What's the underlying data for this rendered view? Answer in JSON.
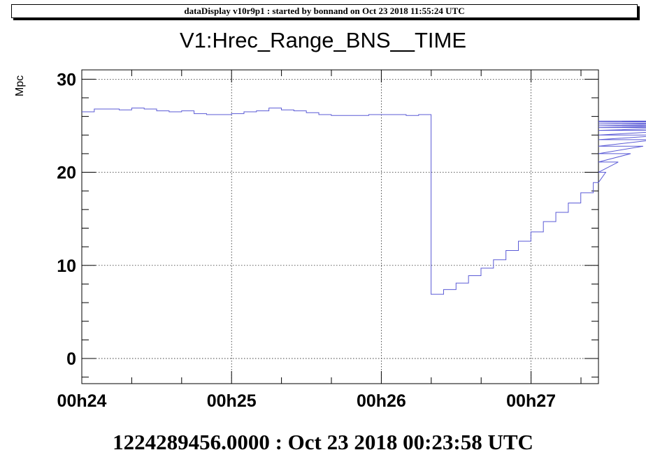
{
  "banner": "dataDisplay v10r9p1 : started by bonnand on Oct 23 2018 11:55:24 UTC",
  "footer": "1224289456.0000 : Oct 23 2018 00:23:58 UTC",
  "colors": {
    "series": "#5b5bd6",
    "grid": "#000000",
    "axis": "#000000"
  },
  "chart_data": {
    "type": "line",
    "title": "V1:Hrec_Range_BNS__TIME",
    "xlabel": "",
    "ylabel": "Mpc",
    "xlim_minutes": [
      24.0,
      27.45
    ],
    "ylim": [
      -2.7,
      31
    ],
    "x_ticks": [
      {
        "value": 24,
        "label": "00h24"
      },
      {
        "value": 25,
        "label": "00h25"
      },
      {
        "value": 26,
        "label": "00h26"
      },
      {
        "value": 27,
        "label": "00h27"
      }
    ],
    "y_ticks": [
      0,
      10,
      20,
      30
    ],
    "grid": true,
    "bin_width_minutes": 0.0833,
    "series": [
      {
        "style": "step",
        "x_start_minutes": 24.0,
        "values": [
          26.5,
          26.8,
          26.8,
          26.7,
          26.9,
          26.8,
          26.6,
          26.5,
          26.6,
          26.3,
          26.2,
          26.2,
          26.3,
          26.5,
          26.6,
          26.9,
          26.7,
          26.6,
          26.4,
          26.2,
          26.1,
          26.1,
          26.1,
          26.2,
          26.2,
          26.2,
          26.1,
          26.2,
          6.9,
          7.4,
          8.1,
          8.9,
          9.7,
          10.6,
          11.6,
          12.6,
          13.6,
          14.7,
          15.7,
          16.7,
          17.8,
          18.9,
          20.0,
          21.1,
          22.0,
          22.8,
          23.5,
          24.0,
          24.5,
          24.8,
          25.0,
          25.2,
          25.4,
          25.5
        ]
      }
    ]
  }
}
